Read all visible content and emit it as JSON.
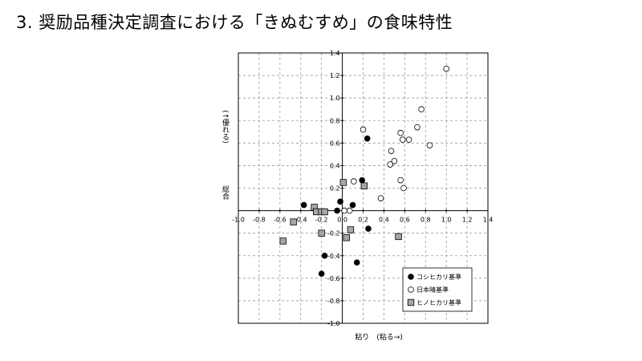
{
  "slide": {
    "title": "3. 奨励品種決定調査における「きぬむすめ」の食味特性"
  },
  "chart_data": {
    "type": "scatter",
    "title": "",
    "xlabel": "粘り　(粘る→)",
    "ylabel_top": "(↑優れる)",
    "ylabel_bottom": "総合",
    "xlim": [
      -1.0,
      1.4
    ],
    "ylim": [
      -1.0,
      1.4
    ],
    "x_ticks": [
      "-1.0",
      "-0.8",
      "-0.6",
      "-0.4",
      "-0.2",
      "0.0",
      "0.2",
      "0.4",
      "0.6",
      "0.8",
      "1.0",
      "1.2",
      "1.4"
    ],
    "y_ticks": [
      "1.4",
      "1.2",
      "1.0",
      "0.8",
      "0.6",
      "0.4",
      "0.2",
      "-0.2",
      "-0.4",
      "-0.6",
      "-0.8",
      "-1.0"
    ],
    "grid": true,
    "legend_position": "bottom-right",
    "series": [
      {
        "name": "コシヒカリ基準",
        "marker": "filled-circle",
        "color": "#000000",
        "points": [
          [
            -0.37,
            0.05
          ],
          [
            -0.05,
            0.0
          ],
          [
            -0.02,
            0.08
          ],
          [
            0.1,
            0.05
          ],
          [
            0.19,
            0.27
          ],
          [
            0.24,
            0.64
          ],
          [
            0.25,
            -0.16
          ],
          [
            -0.17,
            -0.4
          ],
          [
            -0.2,
            -0.56
          ],
          [
            0.14,
            -0.46
          ]
        ]
      },
      {
        "name": "日本晴基準",
        "marker": "open-circle",
        "color": "#000000",
        "points": [
          [
            1.0,
            1.26
          ],
          [
            0.76,
            0.9
          ],
          [
            0.72,
            0.74
          ],
          [
            0.56,
            0.69
          ],
          [
            0.58,
            0.63
          ],
          [
            0.64,
            0.63
          ],
          [
            0.84,
            0.58
          ],
          [
            0.2,
            0.72
          ],
          [
            0.47,
            0.53
          ],
          [
            0.5,
            0.44
          ],
          [
            0.46,
            0.41
          ],
          [
            0.56,
            0.27
          ],
          [
            0.59,
            0.2
          ],
          [
            0.37,
            0.11
          ],
          [
            0.11,
            0.26
          ],
          [
            0.07,
            0.0
          ],
          [
            0.02,
            0.0
          ]
        ]
      },
      {
        "name": "ヒノヒカリ基準",
        "marker": "gray-square",
        "color": "#a6a6a6",
        "points": [
          [
            0.01,
            0.25
          ],
          [
            0.21,
            0.22
          ],
          [
            -0.27,
            0.03
          ],
          [
            -0.25,
            -0.01
          ],
          [
            -0.2,
            -0.01
          ],
          [
            -0.17,
            -0.01
          ],
          [
            -0.47,
            -0.1
          ],
          [
            -0.2,
            -0.2
          ],
          [
            0.08,
            -0.17
          ],
          [
            0.04,
            -0.24
          ],
          [
            -0.57,
            -0.27
          ],
          [
            0.54,
            -0.23
          ]
        ]
      }
    ]
  }
}
